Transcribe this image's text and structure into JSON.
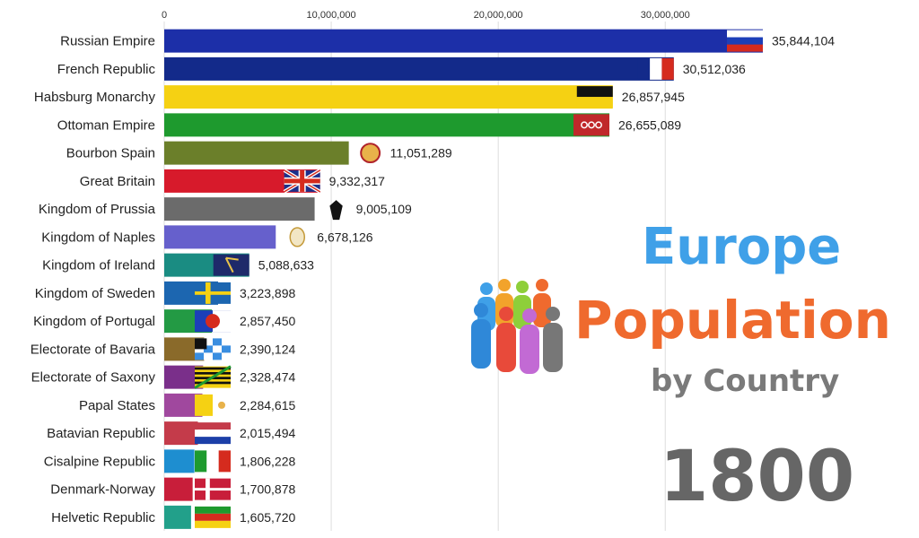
{
  "title": {
    "line1": "Europe",
    "line2": "Population",
    "line3": "by Country",
    "year": "1800"
  },
  "colors": {
    "title_blue": "#3fa0e8",
    "title_orange": "#ef6a2e",
    "title_gray": "#7a7a7a"
  },
  "chart_data": {
    "type": "bar",
    "orientation": "horizontal",
    "xlim": [
      0,
      35844104
    ],
    "xticks": [
      0,
      10000000,
      20000000,
      30000000
    ],
    "xtick_labels": [
      "0",
      "10,000,000",
      "20,000,000",
      "30,000,000"
    ],
    "grid": true,
    "categories": [
      "Russian Empire",
      "French Republic",
      "Habsburg Monarchy",
      "Ottoman Empire",
      "Bourbon Spain",
      "Great Britain",
      "Kingdom of Prussia",
      "Kingdom of Naples",
      "Kingdom of Ireland",
      "Kingdom of Sweden",
      "Kingdom of Portugal",
      "Electorate of Bavaria",
      "Electorate of Saxony",
      "Papal States",
      "Batavian Republic",
      "Cisalpine Republic",
      "Denmark-Norway",
      "Helvetic Republic"
    ],
    "values": [
      35844104,
      30512036,
      26857945,
      26655089,
      11051289,
      9332317,
      9005109,
      6678126,
      5088633,
      3223898,
      2857450,
      2390124,
      2328474,
      2284615,
      2015494,
      1806228,
      1700878,
      1605720
    ],
    "value_labels": [
      "35,844,104",
      "30,512,036",
      "26,857,945",
      "26,655,089",
      "11,051,289",
      "9,332,317",
      "9,005,109",
      "6,678,126",
      "5,088,633",
      "3,223,898",
      "2,857,450",
      "2,390,124",
      "2,328,474",
      "2,284,615",
      "2,015,494",
      "1,806,228",
      "1,700,878",
      "1,605,720"
    ],
    "bar_colors": [
      "#1c2fa8",
      "#132a8a",
      "#f5d113",
      "#1e9a2e",
      "#6b7f2a",
      "#d71a2b",
      "#6b6b6b",
      "#6660cc",
      "#1a8c82",
      "#1c66b0",
      "#239a44",
      "#8a6a2a",
      "#7a2f8a",
      "#a0489e",
      "#c43b4a",
      "#1e8ed0",
      "#c81e3a",
      "#22a08a"
    ],
    "flags": [
      "russia-flag",
      "france-flag",
      "habsburg-flag",
      "ottoman-flag",
      "spain-emblem",
      "britain-flag",
      "prussia-eagle",
      "naples-emblem",
      "ireland-flag",
      "sweden-flag",
      "portugal-flag",
      "bavaria-flag",
      "saxony-flag",
      "papal-flag",
      "batavian-flag",
      "cisalpine-flag",
      "denmark-flag",
      "helvetic-flag"
    ]
  }
}
